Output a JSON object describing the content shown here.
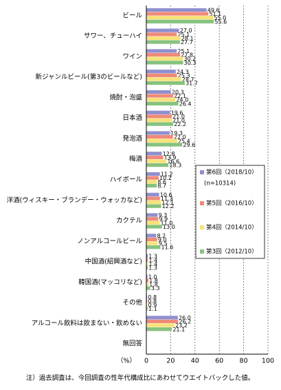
{
  "chart_data": {
    "type": "bar",
    "orientation": "horizontal",
    "categories": [
      "ビール",
      "サワー、チューハイ",
      "ワイン",
      "新ジャンルビール(第3のビールなど)",
      "焼酎・泡盛",
      "日本酒",
      "発泡酒",
      "梅酒",
      "ハイボール",
      "洋酒(ウィスキー・ブランデー・ウォッカなど)",
      "カクテル",
      "ノンアルコールビール",
      "中国酒(紹興酒など)",
      "韓国酒(マッコリなど)",
      "その他",
      "アルコール飲料は飲まない・飲めない",
      "無回答"
    ],
    "series": [
      {
        "name": "第6回（2018/10）",
        "color": "#8f8fcf",
        "values": [
          49.6,
          27,
          25.1,
          24.3,
          20.3,
          19.6,
          19.3,
          12.8,
          11.2,
          10.6,
          9.3,
          8.2,
          1.3,
          1,
          0.8,
          26,
          null
        ],
        "value_labels": [
          "49.6",
          "27.0",
          "25.1",
          "24.3",
          "20.3",
          "19.6",
          "19.3",
          "12.8",
          "11.2",
          "10.6",
          "9.3",
          "8.2",
          "1.3",
          "1.0",
          "0.8",
          "26.0",
          null
        ]
      },
      {
        "name": "第5回（2016/10）",
        "color": "#ef8a78",
        "values": [
          51.1,
          25.1,
          27.8,
          25.3,
          22.1,
          21,
          22,
          13.9,
          10.2,
          11.3,
          9.9,
          9,
          1.4,
          1.8,
          0.8,
          26.2,
          null
        ],
        "value_labels": [
          "51.1",
          "25.1",
          "27.8",
          "25.3",
          "22.1",
          "21.0",
          "22.0",
          "13.9",
          "10.2",
          "11.3",
          "9.9",
          "9.0",
          "1.4",
          "1.8",
          "0.8",
          "26.2",
          null
        ]
      },
      {
        "name": "第4回（2014/10）",
        "color": "#f7e27a",
        "values": [
          55,
          28.1,
          30.2,
          28.7,
          24,
          21,
          25.4,
          16.6,
          8.6,
          12.1,
          11,
          9.5,
          1.4,
          1.8,
          0.9,
          23.2,
          null
        ],
        "value_labels": [
          "55.0",
          "28.1",
          "30.2",
          "28.7",
          "24.0",
          "21.0",
          "25.4",
          "16.6",
          "8.6",
          "12.1",
          "11.0",
          "9.5",
          "1.4",
          "1.8",
          "0.9",
          "23.2",
          null
        ]
      },
      {
        "name": "第3回（2012/10）",
        "color": "#86c27e",
        "values": [
          55.6,
          27.7,
          30.3,
          31.7,
          26.4,
          22.2,
          29.6,
          18.3,
          8.7,
          12.2,
          13,
          11.6,
          1.3,
          3.3,
          1.1,
          21.1,
          null
        ],
        "value_labels": [
          "55.6",
          "27.7",
          "30.3",
          "31.7",
          "26.4",
          "22.2",
          "29.6",
          "18.3",
          "8.7",
          "12.2",
          "13.0",
          "11.6",
          "1.3",
          "3.3",
          "1.1",
          "21.1",
          null
        ]
      }
    ],
    "legend_note": "(n=10314)",
    "x_unit": "（%）",
    "xlim": [
      0,
      100
    ],
    "xticks": [
      0,
      20,
      40,
      60,
      80,
      100
    ],
    "grid": true,
    "footnote": "注）過去調査は、今回調査の性年代構成比にあわせてウエイトバックした値。"
  }
}
